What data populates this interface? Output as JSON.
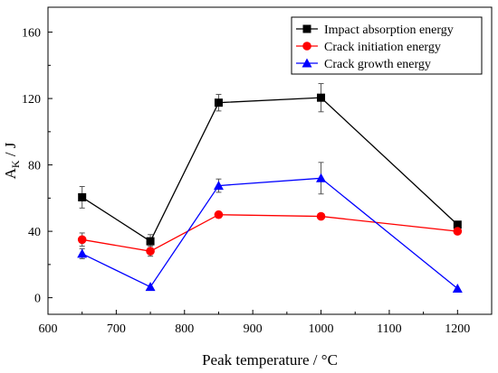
{
  "chart_data": {
    "type": "line",
    "title": "",
    "xlabel": "Peak temperature / °C",
    "ylabel_main": "A",
    "ylabel_sub": "K",
    "ylabel_unit": " / J",
    "xlim": [
      600,
      1250
    ],
    "ylim": [
      -10,
      175
    ],
    "xticks": [
      600,
      700,
      800,
      900,
      1000,
      1100,
      1200
    ],
    "yticks": [
      0,
      40,
      80,
      120,
      160
    ],
    "legend_position": "top-right",
    "x": [
      650,
      750,
      850,
      1000,
      1200
    ],
    "series": [
      {
        "name": "Impact absorption energy",
        "color": "#000000",
        "marker": "square",
        "values": [
          60.5,
          34,
          117.5,
          120.5,
          44
        ],
        "errors": [
          6.5,
          4,
          5,
          8.5,
          0
        ]
      },
      {
        "name": "Crack initiation energy",
        "color": "#ff0000",
        "marker": "circle",
        "values": [
          35,
          28,
          50,
          49,
          40
        ],
        "errors": [
          4,
          3,
          0,
          0,
          0
        ]
      },
      {
        "name": "Crack growth energy",
        "color": "#0000ff",
        "marker": "triangle",
        "values": [
          26.5,
          6.5,
          67.5,
          72,
          5.5
        ],
        "errors": [
          3,
          0,
          4,
          9.5,
          0
        ]
      }
    ]
  }
}
